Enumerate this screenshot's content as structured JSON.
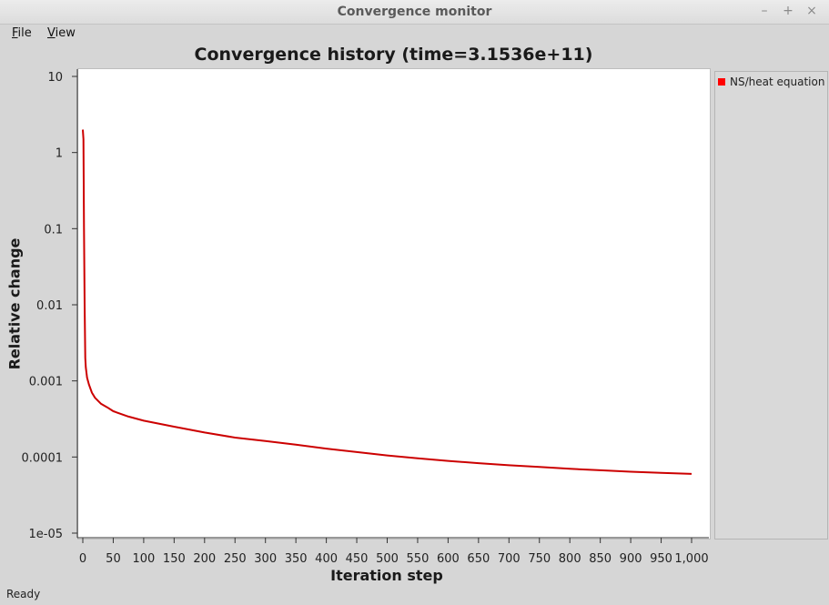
{
  "window": {
    "title": "Convergence monitor",
    "buttons": {
      "minimize": "–",
      "maximize": "+",
      "close": "×"
    }
  },
  "menu": {
    "file": {
      "accel": "F",
      "rest": "ile"
    },
    "view": {
      "accel": "V",
      "rest": "iew"
    }
  },
  "status": "Ready",
  "legend": {
    "items": [
      {
        "label": "NS/heat equation",
        "color": "#ff0000"
      }
    ]
  },
  "chart_data": {
    "type": "line",
    "title": "Convergence history (time=3.1536e+11)",
    "xlabel": "Iteration step",
    "ylabel": "Relative change",
    "xlim": [
      0,
      1000
    ],
    "ylim": [
      1e-05,
      10
    ],
    "y_scale": "log",
    "grid": false,
    "legend_position": "right",
    "xticks": [
      0,
      50,
      100,
      150,
      200,
      250,
      300,
      350,
      400,
      450,
      500,
      550,
      600,
      650,
      700,
      750,
      800,
      850,
      900,
      950,
      1000
    ],
    "xtick_labels": [
      "0",
      "50",
      "100",
      "150",
      "200",
      "250",
      "300",
      "350",
      "400",
      "450",
      "500",
      "550",
      "600",
      "650",
      "700",
      "750",
      "800",
      "850",
      "900",
      "950",
      "1,000"
    ],
    "yticks": [
      10,
      1,
      0.1,
      0.01,
      0.001,
      0.0001,
      1e-05
    ],
    "ytick_labels": [
      "10",
      "1",
      "0.1",
      "0.01",
      "0.001",
      "0.0001",
      "1e-05"
    ],
    "series": [
      {
        "name": "NS/heat equation",
        "color": "#cc0000",
        "x": [
          0,
          1,
          2,
          3,
          4,
          5,
          7,
          10,
          15,
          20,
          30,
          40,
          50,
          75,
          100,
          150,
          200,
          250,
          300,
          350,
          400,
          450,
          500,
          550,
          600,
          650,
          700,
          750,
          800,
          850,
          900,
          950,
          1000
        ],
        "y": [
          2.0,
          1.5,
          0.1,
          0.01,
          0.002,
          0.0015,
          0.0011,
          0.0009,
          0.0007,
          0.0006,
          0.0005,
          0.00045,
          0.0004,
          0.00034,
          0.0003,
          0.00025,
          0.00021,
          0.00018,
          0.000162,
          0.000145,
          0.000129,
          0.000116,
          0.000105,
          9.6e-05,
          8.9e-05,
          8.3e-05,
          7.8e-05,
          7.4e-05,
          7e-05,
          6.7e-05,
          6.4e-05,
          6.2e-05,
          6e-05
        ]
      }
    ]
  }
}
